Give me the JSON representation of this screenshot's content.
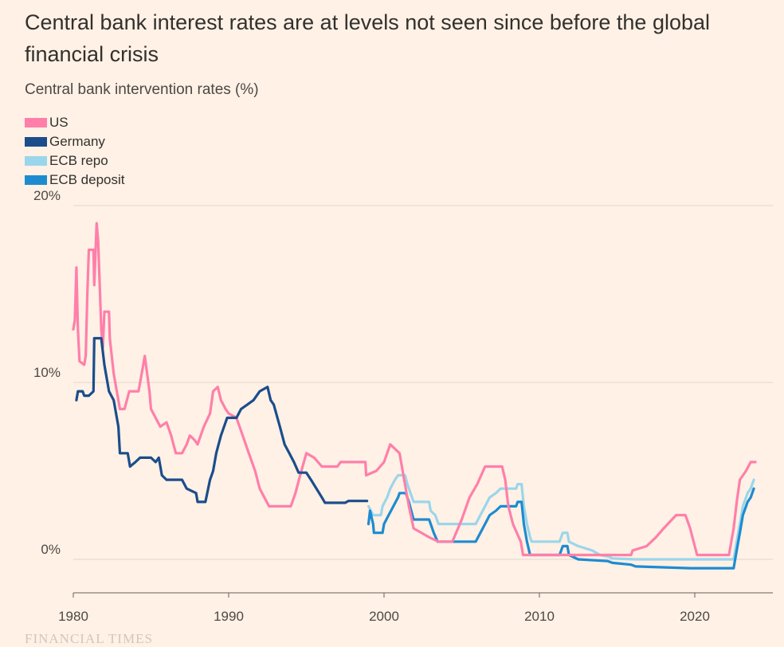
{
  "chart_data": {
    "type": "line",
    "title": "Central bank interest rates are at levels not seen since before the global financial crisis",
    "subtitle": "Central bank intervention rates (%)",
    "xlim": [
      1980,
      2025
    ],
    "ylim": [
      -2,
      20
    ],
    "y_ticks": [
      0,
      10,
      20
    ],
    "y_tick_labels": [
      "0%",
      "10%",
      "20%"
    ],
    "x_ticks": [
      1980,
      1990,
      2000,
      2010,
      2020
    ],
    "x_tick_labels": [
      "1980",
      "1990",
      "2000",
      "2010",
      "2020"
    ],
    "grid": "horizontal",
    "legend_position": "top-left",
    "series": [
      {
        "name": "US",
        "color": "#ff7faa",
        "points": [
          [
            1980.0,
            13.0
          ],
          [
            1980.1,
            13.5
          ],
          [
            1980.2,
            16.5
          ],
          [
            1980.3,
            13.0
          ],
          [
            1980.4,
            11.2
          ],
          [
            1980.7,
            11.0
          ],
          [
            1980.8,
            11.5
          ],
          [
            1980.9,
            15.0
          ],
          [
            1981.0,
            17.5
          ],
          [
            1981.3,
            17.5
          ],
          [
            1981.35,
            15.5
          ],
          [
            1981.5,
            19.0
          ],
          [
            1981.6,
            18.0
          ],
          [
            1981.8,
            13.0
          ],
          [
            1981.9,
            12.0
          ],
          [
            1982.0,
            14.0
          ],
          [
            1982.3,
            14.0
          ],
          [
            1982.35,
            12.5
          ],
          [
            1982.6,
            10.5
          ],
          [
            1982.8,
            9.5
          ],
          [
            1983.0,
            8.5
          ],
          [
            1983.3,
            8.5
          ],
          [
            1983.6,
            9.5
          ],
          [
            1984.2,
            9.5
          ],
          [
            1984.5,
            11.0
          ],
          [
            1984.6,
            11.5
          ],
          [
            1984.9,
            9.5
          ],
          [
            1985.0,
            8.5
          ],
          [
            1985.3,
            8.0
          ],
          [
            1985.6,
            7.5
          ],
          [
            1986.0,
            7.75
          ],
          [
            1986.3,
            7.0
          ],
          [
            1986.6,
            6.0
          ],
          [
            1987.0,
            6.0
          ],
          [
            1987.3,
            6.5
          ],
          [
            1987.5,
            7.0
          ],
          [
            1987.8,
            6.75
          ],
          [
            1988.0,
            6.5
          ],
          [
            1988.4,
            7.5
          ],
          [
            1988.8,
            8.25
          ],
          [
            1989.0,
            9.5
          ],
          [
            1989.3,
            9.75
          ],
          [
            1989.5,
            9.0
          ],
          [
            1989.8,
            8.5
          ],
          [
            1990.0,
            8.25
          ],
          [
            1990.5,
            8.0
          ],
          [
            1990.9,
            7.0
          ],
          [
            1991.3,
            6.0
          ],
          [
            1991.7,
            5.0
          ],
          [
            1992.0,
            4.0
          ],
          [
            1992.3,
            3.5
          ],
          [
            1992.6,
            3.0
          ],
          [
            1993.0,
            3.0
          ],
          [
            1994.0,
            3.0
          ],
          [
            1994.3,
            3.75
          ],
          [
            1994.6,
            4.75
          ],
          [
            1995.0,
            6.0
          ],
          [
            1995.5,
            5.75
          ],
          [
            1996.0,
            5.25
          ],
          [
            1997.0,
            5.25
          ],
          [
            1997.2,
            5.5
          ],
          [
            1998.8,
            5.5
          ],
          [
            1998.85,
            4.75
          ],
          [
            1999.5,
            5.0
          ],
          [
            2000.0,
            5.5
          ],
          [
            2000.4,
            6.5
          ],
          [
            2001.0,
            6.0
          ],
          [
            2001.3,
            4.5
          ],
          [
            2001.6,
            3.0
          ],
          [
            2001.9,
            1.75
          ],
          [
            2002.9,
            1.25
          ],
          [
            2003.5,
            1.0
          ],
          [
            2004.4,
            1.0
          ],
          [
            2005.0,
            2.25
          ],
          [
            2005.5,
            3.5
          ],
          [
            2006.0,
            4.25
          ],
          [
            2006.5,
            5.25
          ],
          [
            2007.6,
            5.25
          ],
          [
            2007.8,
            4.5
          ],
          [
            2008.0,
            3.0
          ],
          [
            2008.3,
            2.0
          ],
          [
            2008.8,
            1.0
          ],
          [
            2008.95,
            0.25
          ],
          [
            2015.9,
            0.25
          ],
          [
            2016.0,
            0.5
          ],
          [
            2016.9,
            0.75
          ],
          [
            2017.5,
            1.25
          ],
          [
            2018.0,
            1.75
          ],
          [
            2018.8,
            2.5
          ],
          [
            2019.4,
            2.5
          ],
          [
            2019.7,
            1.75
          ],
          [
            2020.15,
            0.25
          ],
          [
            2022.2,
            0.25
          ],
          [
            2022.5,
            1.75
          ],
          [
            2022.7,
            3.25
          ],
          [
            2022.9,
            4.5
          ],
          [
            2023.3,
            5.0
          ],
          [
            2023.6,
            5.5
          ],
          [
            2023.9,
            5.5
          ]
        ]
      },
      {
        "name": "Germany",
        "color": "#1b4d8c",
        "points": [
          [
            1980.2,
            9.0
          ],
          [
            1980.3,
            9.5
          ],
          [
            1980.6,
            9.5
          ],
          [
            1980.7,
            9.25
          ],
          [
            1981.0,
            9.25
          ],
          [
            1981.3,
            9.5
          ],
          [
            1981.35,
            12.5
          ],
          [
            1981.8,
            12.5
          ],
          [
            1982.0,
            11.0
          ],
          [
            1982.3,
            9.5
          ],
          [
            1982.6,
            9.0
          ],
          [
            1982.9,
            7.5
          ],
          [
            1983.0,
            6.0
          ],
          [
            1983.5,
            6.0
          ],
          [
            1983.65,
            5.25
          ],
          [
            1984.0,
            5.5
          ],
          [
            1984.3,
            5.75
          ],
          [
            1985.0,
            5.75
          ],
          [
            1985.3,
            5.5
          ],
          [
            1985.5,
            5.75
          ],
          [
            1985.7,
            4.75
          ],
          [
            1986.0,
            4.5
          ],
          [
            1987.0,
            4.5
          ],
          [
            1987.3,
            4.0
          ],
          [
            1987.9,
            3.75
          ],
          [
            1988.0,
            3.25
          ],
          [
            1988.5,
            3.25
          ],
          [
            1988.8,
            4.5
          ],
          [
            1989.0,
            5.0
          ],
          [
            1989.2,
            6.0
          ],
          [
            1989.5,
            7.0
          ],
          [
            1989.9,
            8.0
          ],
          [
            1990.5,
            8.0
          ],
          [
            1990.8,
            8.5
          ],
          [
            1991.2,
            8.75
          ],
          [
            1991.6,
            9.0
          ],
          [
            1992.0,
            9.5
          ],
          [
            1992.5,
            9.75
          ],
          [
            1992.7,
            9.0
          ],
          [
            1992.9,
            8.75
          ],
          [
            1993.3,
            7.5
          ],
          [
            1993.6,
            6.5
          ],
          [
            1993.9,
            6.0
          ],
          [
            1994.2,
            5.5
          ],
          [
            1994.5,
            4.9
          ],
          [
            1995.0,
            4.9
          ],
          [
            1995.3,
            4.5
          ],
          [
            1996.0,
            3.5
          ],
          [
            1996.2,
            3.2
          ],
          [
            1997.5,
            3.2
          ],
          [
            1997.7,
            3.3
          ],
          [
            1998.9,
            3.3
          ]
        ]
      },
      {
        "name": "ECB repo",
        "color": "#9ad6eb",
        "points": [
          [
            1999.0,
            3.0
          ],
          [
            1999.3,
            2.5
          ],
          [
            1999.8,
            2.5
          ],
          [
            1999.9,
            3.0
          ],
          [
            2000.2,
            3.5
          ],
          [
            2000.4,
            4.0
          ],
          [
            2000.7,
            4.5
          ],
          [
            2000.9,
            4.75
          ],
          [
            2001.35,
            4.75
          ],
          [
            2001.5,
            4.25
          ],
          [
            2001.7,
            3.75
          ],
          [
            2001.9,
            3.25
          ],
          [
            2002.9,
            3.25
          ],
          [
            2003.0,
            2.75
          ],
          [
            2003.3,
            2.5
          ],
          [
            2003.5,
            2.0
          ],
          [
            2005.9,
            2.0
          ],
          [
            2006.2,
            2.5
          ],
          [
            2006.5,
            3.0
          ],
          [
            2006.8,
            3.5
          ],
          [
            2007.2,
            3.75
          ],
          [
            2007.5,
            4.0
          ],
          [
            2008.5,
            4.0
          ],
          [
            2008.6,
            4.25
          ],
          [
            2008.85,
            4.25
          ],
          [
            2009.0,
            3.0
          ],
          [
            2009.2,
            2.0
          ],
          [
            2009.4,
            1.25
          ],
          [
            2009.5,
            1.0
          ],
          [
            2011.3,
            1.0
          ],
          [
            2011.5,
            1.5
          ],
          [
            2011.8,
            1.5
          ],
          [
            2011.9,
            1.0
          ],
          [
            2012.5,
            0.75
          ],
          [
            2013.4,
            0.5
          ],
          [
            2013.9,
            0.25
          ],
          [
            2014.5,
            0.15
          ],
          [
            2014.7,
            0.05
          ],
          [
            2016.2,
            0.0
          ],
          [
            2022.5,
            0.0
          ],
          [
            2022.6,
            0.5
          ],
          [
            2022.75,
            1.25
          ],
          [
            2022.9,
            2.0
          ],
          [
            2023.1,
            3.0
          ],
          [
            2023.4,
            3.75
          ],
          [
            2023.6,
            4.0
          ],
          [
            2023.8,
            4.5
          ]
        ]
      },
      {
        "name": "ECB deposit",
        "color": "#1e8bd0",
        "points": [
          [
            1999.0,
            2.0
          ],
          [
            1999.1,
            2.75
          ],
          [
            1999.3,
            2.0
          ],
          [
            1999.35,
            1.5
          ],
          [
            1999.9,
            1.5
          ],
          [
            2000.0,
            2.0
          ],
          [
            2000.3,
            2.5
          ],
          [
            2000.6,
            3.0
          ],
          [
            2000.9,
            3.5
          ],
          [
            2001.0,
            3.75
          ],
          [
            2001.4,
            3.75
          ],
          [
            2001.6,
            3.25
          ],
          [
            2001.9,
            2.25
          ],
          [
            2002.9,
            2.25
          ],
          [
            2003.2,
            1.5
          ],
          [
            2003.45,
            1.0
          ],
          [
            2005.9,
            1.0
          ],
          [
            2006.2,
            1.5
          ],
          [
            2006.5,
            2.0
          ],
          [
            2006.8,
            2.5
          ],
          [
            2007.2,
            2.75
          ],
          [
            2007.5,
            3.0
          ],
          [
            2008.5,
            3.0
          ],
          [
            2008.6,
            3.25
          ],
          [
            2008.85,
            3.25
          ],
          [
            2009.0,
            2.0
          ],
          [
            2009.2,
            1.0
          ],
          [
            2009.4,
            0.25
          ],
          [
            2011.3,
            0.25
          ],
          [
            2011.5,
            0.75
          ],
          [
            2011.8,
            0.75
          ],
          [
            2011.9,
            0.25
          ],
          [
            2012.5,
            0.0
          ],
          [
            2014.4,
            -0.1
          ],
          [
            2014.7,
            -0.2
          ],
          [
            2015.9,
            -0.3
          ],
          [
            2016.2,
            -0.4
          ],
          [
            2019.7,
            -0.5
          ],
          [
            2022.5,
            -0.5
          ],
          [
            2022.6,
            0.0
          ],
          [
            2022.75,
            0.75
          ],
          [
            2022.9,
            1.5
          ],
          [
            2023.1,
            2.5
          ],
          [
            2023.4,
            3.25
          ],
          [
            2023.6,
            3.5
          ],
          [
            2023.8,
            4.0
          ]
        ]
      }
    ]
  },
  "footer": {
    "source": "FINANCIAL TIMES"
  }
}
